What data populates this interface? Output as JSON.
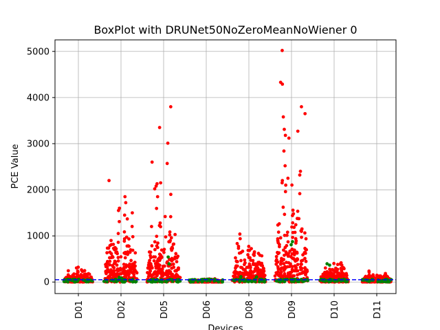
{
  "chart_data": {
    "type": "scatter",
    "title": "BoxPlot with DRUNet50NoZeroMeanNoWiener 0",
    "xlabel": "Devices",
    "ylabel": "PCE Value",
    "categories": [
      "D01",
      "D02",
      "D05",
      "D06",
      "D08",
      "D09",
      "D10",
      "D11"
    ],
    "y_ticks": [
      0,
      1000,
      2000,
      3000,
      4000,
      5000
    ],
    "y_tick_labels": [
      "0",
      "1000",
      "2000",
      "3000",
      "4000",
      "5000"
    ],
    "ylim": [
      -250,
      5250
    ],
    "grid": true,
    "threshold_line": {
      "value": 50,
      "color": "#0000ff",
      "style": "dashed"
    },
    "colors": {
      "points_red": "#ff0000",
      "points_green": "#008000",
      "grid": "#b0b0b0",
      "threshold": "#0000ff"
    },
    "series": [
      {
        "device": "D01",
        "median_range": [
          0,
          380
        ],
        "red_max": 360,
        "green_max": 90,
        "spread": 0.17
      },
      {
        "device": "D02",
        "median_range": [
          0,
          1600
        ],
        "red_max": 2200,
        "outliers": [
          2200,
          1850,
          1720,
          1600,
          1550,
          1500,
          1450,
          1310
        ],
        "green_max": 120,
        "spread": 0.2
      },
      {
        "device": "D05",
        "median_range": [
          0,
          1700
        ],
        "red_max": 3800,
        "outliers": [
          3800,
          3350,
          3010,
          2600,
          2570,
          2150,
          2130,
          2080,
          2020,
          1900,
          1850
        ],
        "green_max": 560,
        "spread": 0.2
      },
      {
        "device": "D06",
        "median_range": [
          0,
          80
        ],
        "red_max": 80,
        "green_max": 80,
        "spread": 0.2
      },
      {
        "device": "D08",
        "median_range": [
          0,
          1100
        ],
        "red_max": 1100,
        "green_max": 120,
        "spread": 0.2
      },
      {
        "device": "D09",
        "median_range": [
          0,
          2500
        ],
        "red_max": 5020,
        "outliers": [
          5020,
          4330,
          4290,
          3800,
          3650,
          3580,
          3310,
          3270,
          3180,
          3120,
          2840,
          2520,
          2400,
          2320,
          2250,
          2200,
          2150,
          2100
        ],
        "green_max": 1080,
        "spread": 0.2
      },
      {
        "device": "D10",
        "median_range": [
          0,
          470
        ],
        "red_max": 470,
        "green_max": 420,
        "spread": 0.17
      },
      {
        "device": "D11",
        "median_range": [
          0,
          250
        ],
        "red_max": 250,
        "green_max": 80,
        "spread": 0.17
      }
    ]
  }
}
